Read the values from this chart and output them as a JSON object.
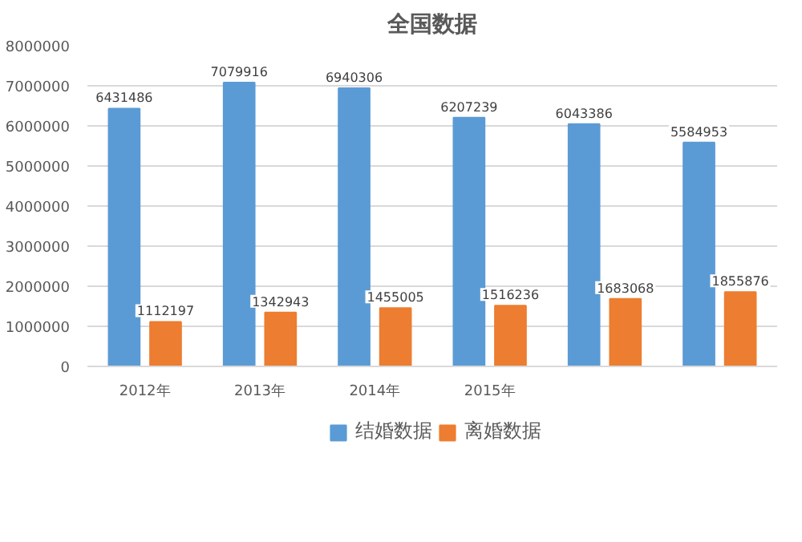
{
  "chart_data": {
    "type": "bar",
    "title": "全国数据",
    "categories": [
      "2012年",
      "2013年",
      "2014年",
      "2015年",
      null,
      null
    ],
    "series": [
      {
        "name": "结婚数据",
        "color": "#5b9bd5",
        "values": [
          6431486,
          7079916,
          6940306,
          6207239,
          6043386,
          5584953
        ]
      },
      {
        "name": "离婚数据",
        "color": "#ed7d31",
        "values": [
          1112197,
          1342943,
          1455005,
          1516236,
          1683068,
          1855876
        ]
      }
    ],
    "ylim": [
      0,
      8000000
    ],
    "yticks": [
      0,
      1000000,
      2000000,
      3000000,
      4000000,
      5000000,
      6000000,
      7000000,
      8000000
    ],
    "grid": "y",
    "legend": "bottom",
    "data_labels": true
  }
}
